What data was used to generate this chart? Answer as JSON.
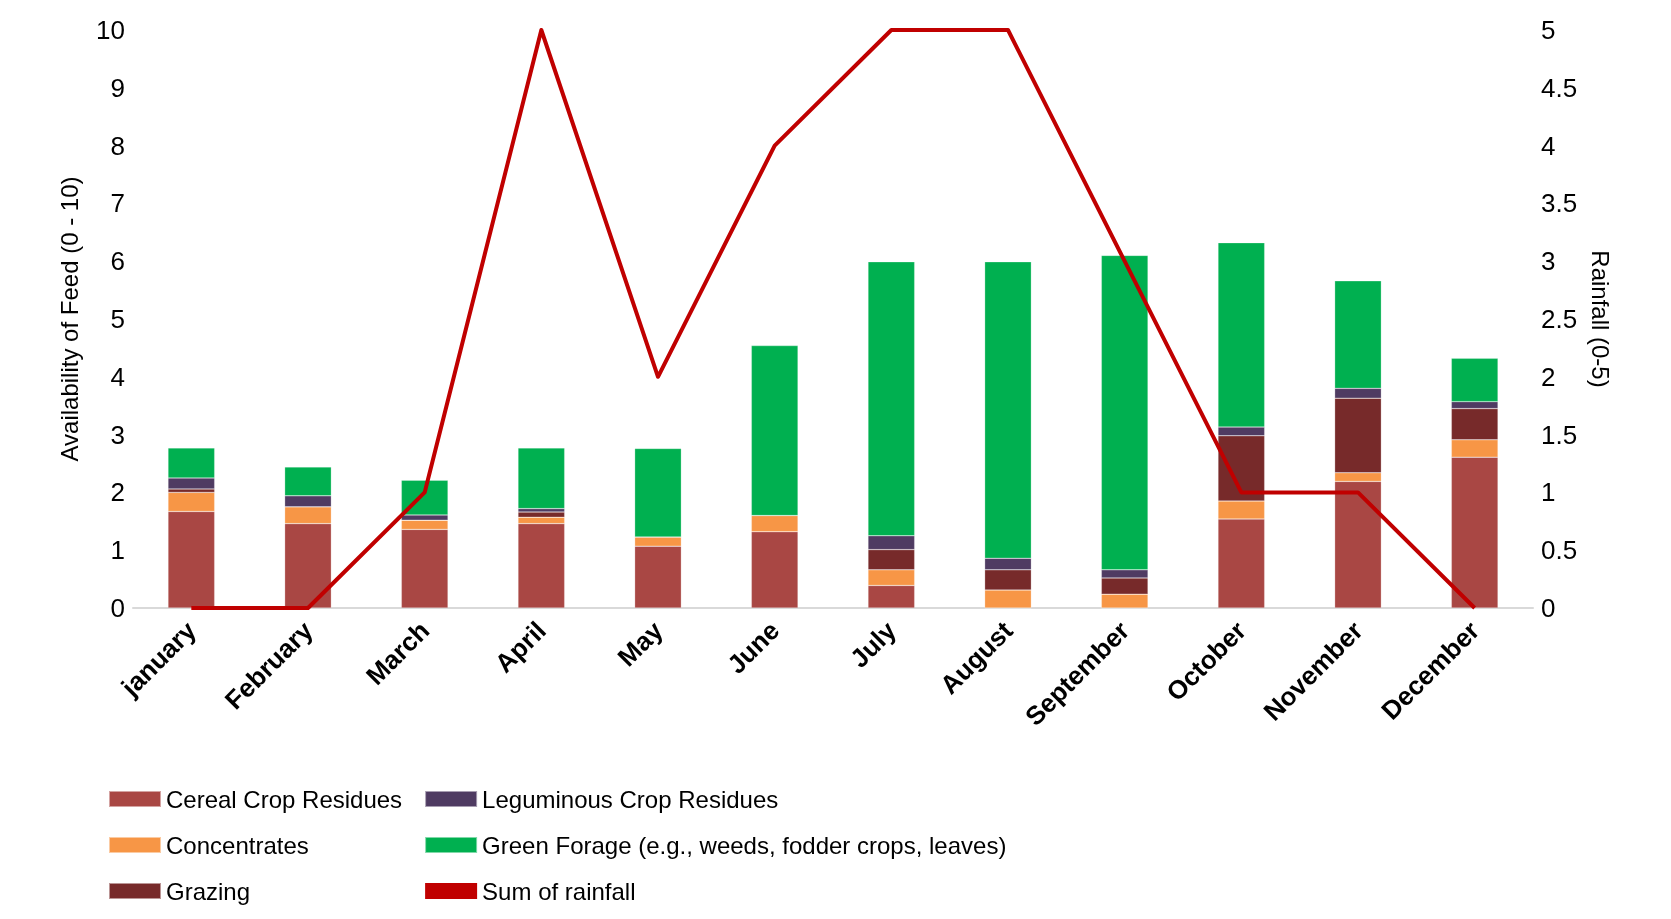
{
  "chart_data": {
    "type": "bar",
    "stacked": true,
    "ylabel": "Availability of Feed (0 - 10)",
    "y2label": "Rainfall (0-5)",
    "categories": [
      "january",
      "February",
      "March",
      "April",
      "May",
      "June",
      "July",
      "August",
      "September",
      "October",
      "November",
      "December"
    ],
    "series": [
      {
        "name": "Cereal Crop Residues",
        "color": "#a94744",
        "values": [
          1.67,
          1.46,
          1.36,
          1.46,
          1.07,
          1.32,
          0.39,
          0,
          0,
          1.54,
          2.19,
          2.61
        ]
      },
      {
        "name": "Concentrates",
        "color": "#f79646",
        "values": [
          0.33,
          0.29,
          0.16,
          0.11,
          0.16,
          0.28,
          0.27,
          0.31,
          0.24,
          0.31,
          0.15,
          0.3
        ]
      },
      {
        "name": "Grazing",
        "color": "#772a2a",
        "values": [
          0.06,
          0,
          0,
          0.09,
          0,
          0,
          0.35,
          0.35,
          0.28,
          1.13,
          1.29,
          0.54
        ]
      },
      {
        "name": "Leguminous Crop Residues",
        "color": "#4f3b62",
        "values": [
          0.19,
          0.19,
          0.09,
          0.06,
          0,
          0,
          0.24,
          0.2,
          0.14,
          0.15,
          0.17,
          0.12
        ]
      },
      {
        "name": "Green Forage (e.g., weeds, fodder crops, leaves)",
        "color": "#00b050",
        "values": [
          0.52,
          0.5,
          0.6,
          1.05,
          1.53,
          2.94,
          4.74,
          5.13,
          5.44,
          3.19,
          1.86,
          0.75
        ]
      },
      {
        "name": "Sum of rainfall",
        "type": "line",
        "axis": "y2",
        "color": "#c00000",
        "marker": "none",
        "values": [
          0,
          0,
          1,
          5,
          2,
          4,
          5,
          5,
          3,
          1,
          1,
          0
        ]
      }
    ],
    "ylim": [
      0,
      10
    ],
    "yticks": [
      0,
      1,
      2,
      3,
      4,
      5,
      6,
      7,
      8,
      9,
      10
    ],
    "y2lim": [
      0,
      5
    ],
    "y2ticks": [
      0,
      0.5,
      1,
      1.5,
      2,
      2.5,
      3,
      3.5,
      4,
      4.5,
      5
    ],
    "grid": false,
    "legend": "bottom"
  }
}
